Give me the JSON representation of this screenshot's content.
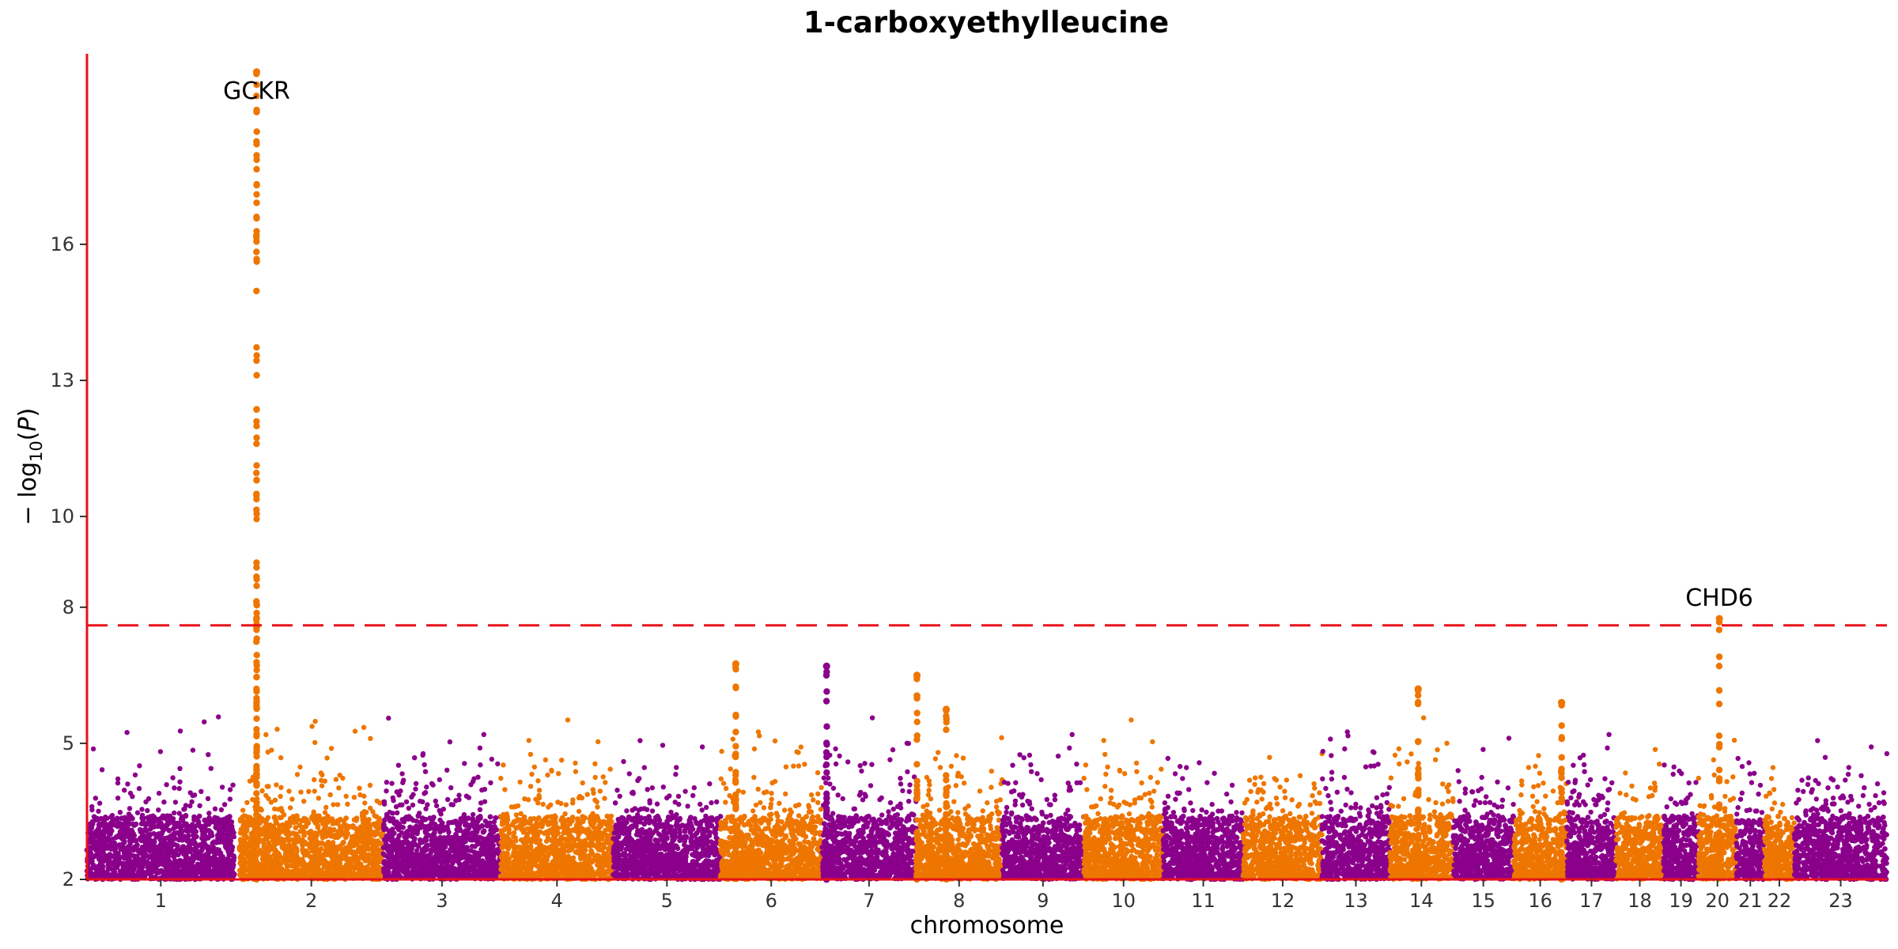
{
  "chart_data": {
    "type": "scatter",
    "title": "1-carboxyethylleucine",
    "xlabel": "chromosome",
    "ylabel_main": "− log",
    "ylabel_sub": "10",
    "ylabel_paren_open": "(",
    "ylabel_var": "P",
    "ylabel_paren_close": ")",
    "ylim": [
      2,
      20.2
    ],
    "yticks": [
      2,
      5,
      8,
      10,
      13,
      16
    ],
    "chromosomes": [
      "1",
      "2",
      "3",
      "4",
      "5",
      "6",
      "7",
      "8",
      "9",
      "10",
      "11",
      "12",
      "13",
      "14",
      "15",
      "16",
      "17",
      "18",
      "19",
      "20",
      "21",
      "22",
      "23"
    ],
    "chrom_sizes": [
      249,
      243,
      198,
      190,
      181,
      171,
      159,
      145,
      138,
      134,
      135,
      133,
      114,
      107,
      102,
      90,
      83,
      80,
      59,
      64,
      47,
      51,
      156
    ],
    "gap_after_chrom": {
      "1": 8
    },
    "threshold": 7.6,
    "colors": {
      "odd": "#8b008b",
      "even": "#ee7600",
      "threshold": "#e8121a",
      "axis": "#e8121a"
    },
    "peaks": [
      {
        "chrom": "2",
        "pos_frac": 0.12,
        "max": 19.8,
        "count": 130
      },
      {
        "chrom": "6",
        "pos_frac": 0.15,
        "max": 6.75,
        "count": 40
      },
      {
        "chrom": "7",
        "pos_frac": 0.05,
        "max": 6.7,
        "count": 35
      },
      {
        "chrom": "8",
        "pos_frac": 0.01,
        "max": 6.5,
        "count": 30
      },
      {
        "chrom": "8",
        "pos_frac": 0.35,
        "max": 5.75,
        "count": 30
      },
      {
        "chrom": "14",
        "pos_frac": 0.45,
        "max": 6.2,
        "count": 30
      },
      {
        "chrom": "16",
        "pos_frac": 0.9,
        "max": 5.9,
        "count": 25
      },
      {
        "chrom": "20",
        "pos_frac": 0.55,
        "max": 7.75,
        "count": 25
      }
    ],
    "annotations": [
      {
        "label": "GCKR",
        "chrom": "2",
        "pos_frac": 0.12,
        "y": 19.8
      },
      {
        "label": "CHD6",
        "chrom": "20",
        "pos_frac": 0.55,
        "y": 7.75
      }
    ]
  }
}
